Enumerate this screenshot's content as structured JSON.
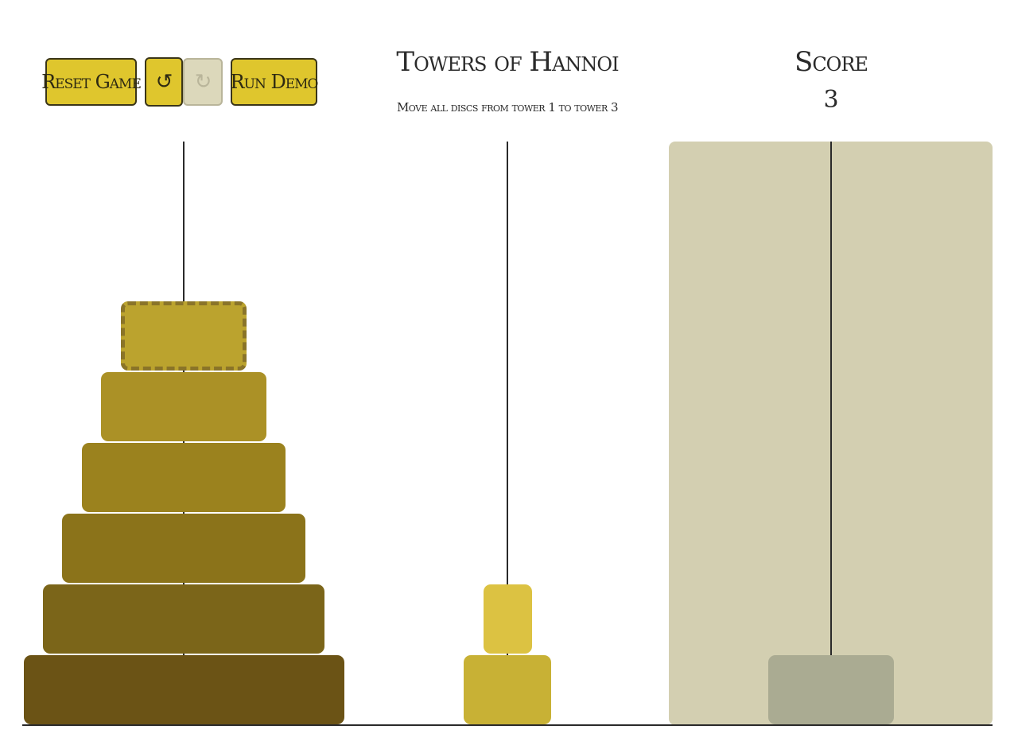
{
  "toolbar": {
    "reset_label": "Reset Game",
    "undo_icon": "undo-arrow-icon",
    "undo_glyph": "↺",
    "redo_icon": "redo-arrow-icon",
    "redo_glyph": "↻",
    "run_demo_label": "Run Demo",
    "redo_enabled": false
  },
  "header": {
    "title": "Towers of Hannoi",
    "subtitle": "Move all discs from tower 1 to tower 3"
  },
  "score": {
    "label": "Score",
    "value": "3"
  },
  "game": {
    "disc_count": 8,
    "selected_tower": 1,
    "hover_tower": 3,
    "selected_disc": 3,
    "towers": [
      {
        "id": 1,
        "discs": [
          8,
          7,
          6,
          5,
          4,
          3
        ]
      },
      {
        "id": 2,
        "discs": [
          2,
          1
        ]
      },
      {
        "id": 3,
        "discs": []
      }
    ],
    "preview": {
      "tower": 3,
      "disc": 3
    }
  },
  "colors": {
    "button": "#dfc62d",
    "button_disabled": "#dcd8bb",
    "tower_highlight": "#d3cfb1",
    "preview_disc": "#aaab92",
    "disc_1": "#dcc242",
    "disc_2": "#c8b135",
    "disc_3": "#bba32e",
    "disc_4": "#ab9126",
    "disc_5": "#9b821e",
    "disc_6": "#8b731a",
    "disc_7": "#7b6519",
    "disc_8": "#6b5315"
  }
}
